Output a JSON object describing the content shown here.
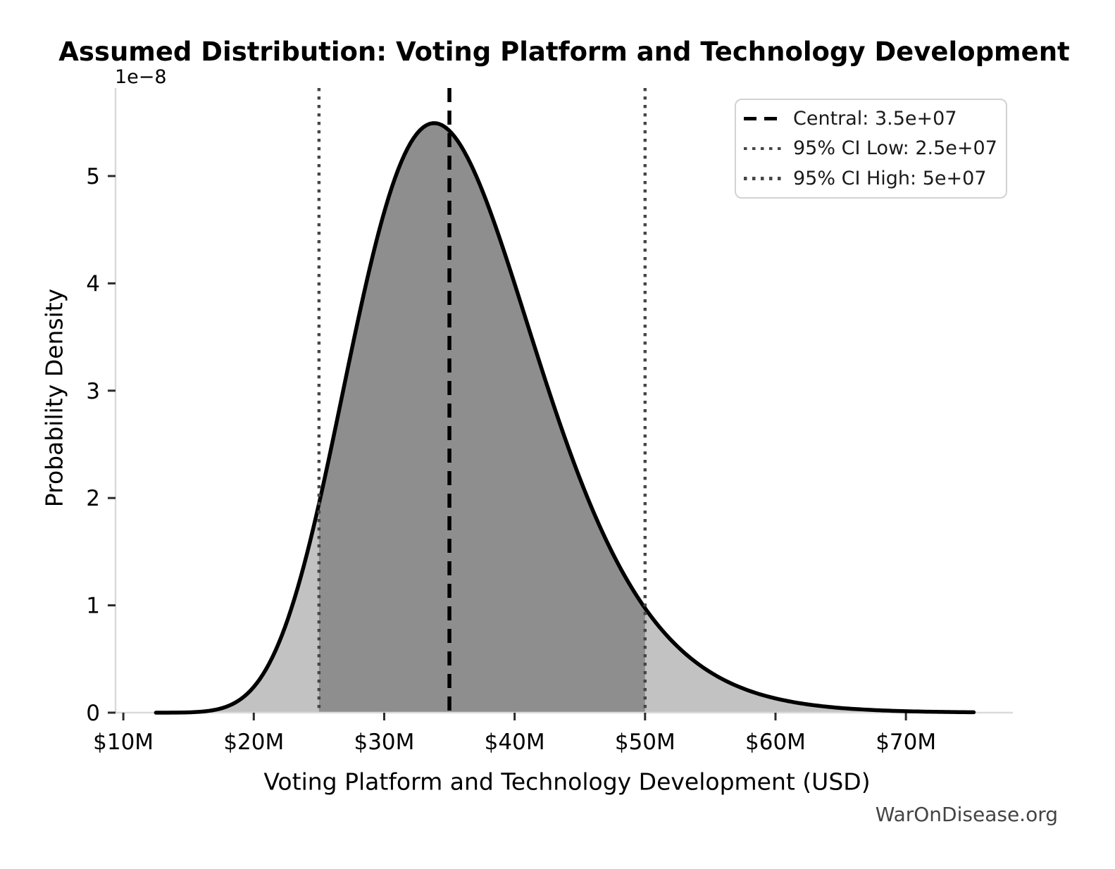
{
  "figure": {
    "background": "#ffffff"
  },
  "watermark": {
    "text": "WarOnDisease.org",
    "color": "#444444"
  },
  "legend": {
    "position": "upper-right",
    "items": [
      {
        "label": "Central: 3.5e+07",
        "line_style": "dashed",
        "color": "#000000"
      },
      {
        "label": "95% CI Low: 2.5e+07",
        "line_style": "dotted",
        "color": "#454545"
      },
      {
        "label": "95% CI High: 5e+07",
        "line_style": "dotted",
        "color": "#454545"
      }
    ]
  },
  "chart_data": {
    "type": "area",
    "title": "Assumed Distribution: Voting Platform and Technology Development",
    "xlabel": "Voting Platform and Technology Development (USD)",
    "ylabel": "Probability Density",
    "y_offset_text": "1e−8",
    "y_scale_factor": 1e-08,
    "grid": false,
    "legend_position": "upper right",
    "xlim": [
      9400000,
      78200000
    ],
    "ylim": [
      0,
      5.82e-08
    ],
    "x_ticks": [
      {
        "value": 10000000,
        "label": "$10M"
      },
      {
        "value": 20000000,
        "label": "$20M"
      },
      {
        "value": 30000000,
        "label": "$30M"
      },
      {
        "value": 40000000,
        "label": "$40M"
      },
      {
        "value": 50000000,
        "label": "$50M"
      },
      {
        "value": 60000000,
        "label": "$60M"
      },
      {
        "value": 70000000,
        "label": "$70M"
      }
    ],
    "y_ticks": [
      {
        "value": 0,
        "label": "0"
      },
      {
        "value": 1e-08,
        "label": "1"
      },
      {
        "value": 2e-08,
        "label": "2"
      },
      {
        "value": 3e-08,
        "label": "3"
      },
      {
        "value": 4e-08,
        "label": "4"
      },
      {
        "value": 5e-08,
        "label": "5"
      }
    ],
    "central": 35000000,
    "ci_low": 25000000,
    "ci_high": 50000000,
    "ci_level": 95,
    "curve": {
      "distribution": "lognormal",
      "median": 35355339,
      "sigma_log": 0.21,
      "x_start": 12500000,
      "x_end": 75200000,
      "peak_x": 33800000,
      "peak_density": 5.5e-08,
      "density_at_ci_low": 2.05e-08,
      "density_at_ci_high": 9.2e-09
    },
    "styles": {
      "curve_color": "#000000",
      "curve_width": 5.5,
      "fill_outer": "#c2c2c2",
      "fill_inner": "#8e8e8e",
      "central_line_color": "#000000",
      "ci_line_color": "#454545",
      "spine_color": "#dadada",
      "tick_color": "#2b2b2b",
      "label_color": "#000000"
    }
  }
}
